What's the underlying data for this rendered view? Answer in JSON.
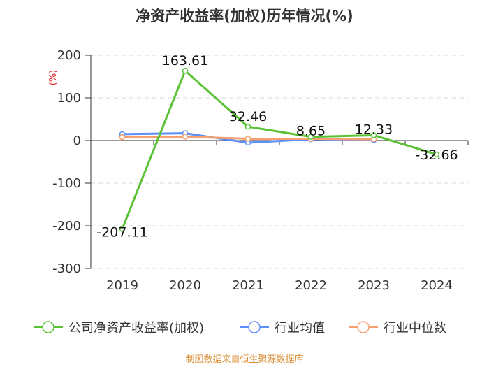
{
  "chart_data": {
    "type": "line",
    "title": "净资产收益率(加权)历年情况(%)",
    "ylabel": "(%)",
    "xlabel": "",
    "categories": [
      "2019",
      "2020",
      "2021",
      "2022",
      "2023",
      "2024"
    ],
    "ylim": [
      -300,
      200
    ],
    "yticks": [
      200,
      100,
      0,
      -100,
      -200,
      -300
    ],
    "grid": true,
    "legend_position": "bottom",
    "series": [
      {
        "name": "公司净资产收益率(加权)",
        "color": "#5ac234",
        "values": [
          -207.11,
          163.61,
          32.46,
          8.65,
          12.33,
          -32.66
        ],
        "labels": [
          "-207.11",
          "163.61",
          "32.46",
          "8.65",
          "12.33",
          "-32.66"
        ]
      },
      {
        "name": "行业均值",
        "color": "#5b8ff9",
        "values": [
          15,
          17,
          -5,
          3,
          1,
          null
        ]
      },
      {
        "name": "行业中位数",
        "color": "#f5a06e",
        "values": [
          8,
          9,
          4,
          4,
          3,
          null
        ]
      }
    ]
  },
  "source": "制图数据来自恒生聚源数据库"
}
